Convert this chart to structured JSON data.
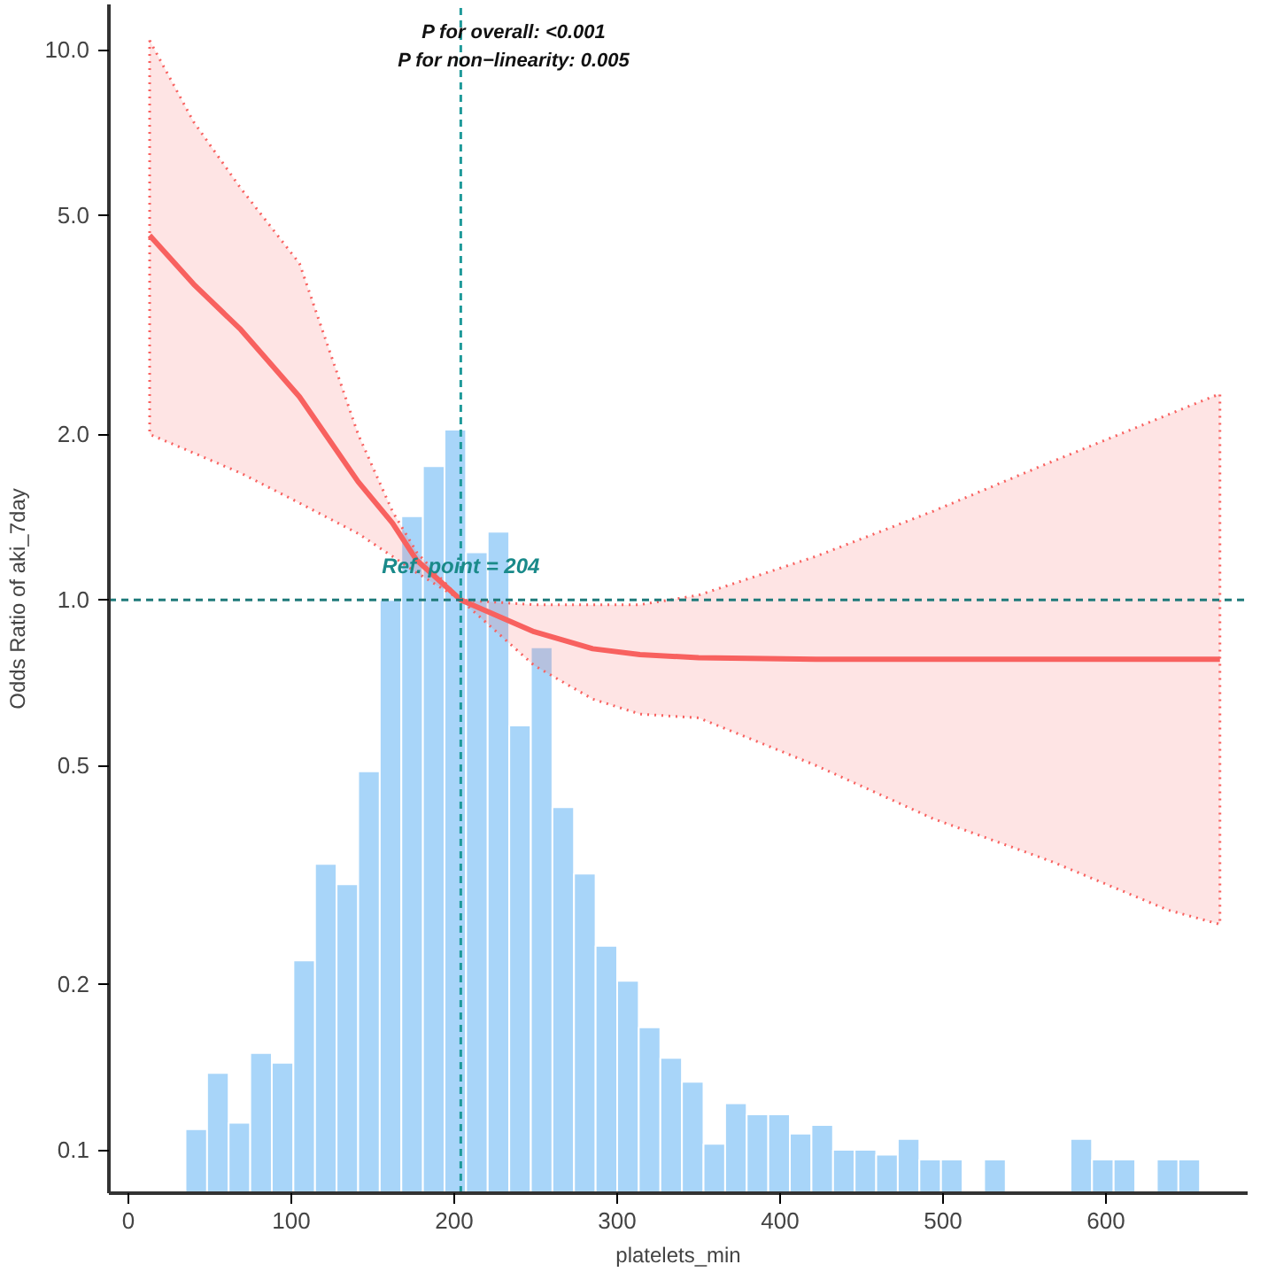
{
  "chart_data": {
    "type": "line",
    "xlabel": "platelets_min",
    "ylabel": "Odds Ratio of aki_7day",
    "log": "y",
    "grid": false,
    "xlim": [
      -12,
      687
    ],
    "ylim": [
      0.0834,
      12.1
    ],
    "xticks": [
      0,
      100,
      200,
      300,
      400,
      500,
      600
    ],
    "yticks": [
      {
        "value": 0.1,
        "label": "0.1"
      },
      {
        "value": 0.2,
        "label": "0.2"
      },
      {
        "value": 0.5,
        "label": "0.5"
      },
      {
        "value": 1,
        "label": "1.0"
      },
      {
        "value": 2,
        "label": "2.0"
      },
      {
        "value": 5,
        "label": "5.0"
      },
      {
        "value": 10,
        "label": "10.0"
      }
    ],
    "series": [
      {
        "type": "histogram",
        "color": "#a8d5f9",
        "bins": [
          35,
          48.25,
          61.5,
          74.75,
          88,
          101.25,
          114.5,
          127.75,
          141,
          154.25,
          167.5,
          180.75,
          194,
          207.25,
          220.5,
          233.75,
          247,
          260.25,
          273.5,
          286.75,
          300,
          313.25,
          326.5,
          339.75,
          353,
          366.25,
          379.5,
          392.75,
          406,
          419.25,
          432.5,
          445.75,
          459,
          472.25,
          485.5,
          498.75,
          512,
          525.25,
          538.5,
          551.75,
          565,
          578.25,
          591.5,
          604.75,
          618,
          631.25,
          644.5,
          657.75
        ],
        "values": [
          0.109,
          0.138,
          0.112,
          0.15,
          0.144,
          0.221,
          0.331,
          0.304,
          0.488,
          1.0,
          1.42,
          1.75,
          2.04,
          1.22,
          1.33,
          0.591,
          0.82,
          0.42,
          0.318,
          0.235,
          0.203,
          0.167,
          0.147,
          0.133,
          0.1026,
          0.1215,
          0.116,
          0.116,
          0.107,
          0.111,
          0.1,
          0.1,
          0.098,
          0.1047,
          0.096,
          0.096,
          null,
          0.096,
          null,
          null,
          null,
          0.1047,
          0.096,
          0.096,
          null,
          0.096,
          0.096
        ]
      },
      {
        "type": "line",
        "color": "#f8615f",
        "line_style": "solid",
        "x": [
          13,
          40,
          69,
          105,
          141,
          162,
          177,
          204,
          249,
          285,
          314,
          350,
          422,
          494,
          566,
          638,
          670
        ],
        "values": [
          4.6,
          3.75,
          3.1,
          2.34,
          1.64,
          1.38,
          1.18,
          1.0,
          0.875,
          0.815,
          0.795,
          0.785,
          0.78,
          0.78,
          0.78,
          0.78,
          0.78
        ],
        "upper": [
          10.4,
          7.4,
          5.6,
          4.09,
          2.0,
          1.45,
          1.22,
          1.0,
          0.98,
          0.98,
          0.98,
          1.02,
          1.2,
          1.45,
          1.78,
          2.17,
          2.37
        ],
        "lower": [
          2.0,
          1.85,
          1.7,
          1.5,
          1.32,
          1.2,
          1.12,
          1.0,
          0.76,
          0.66,
          0.62,
          0.61,
          0.5,
          0.4,
          0.335,
          0.273,
          0.257
        ]
      }
    ],
    "ref_lines": [
      {
        "axis": "x",
        "value": 204,
        "color": "#1f9a9a",
        "line_style": "dashed"
      },
      {
        "axis": "y",
        "value": 1,
        "color": "#1f7a7a",
        "line_style": "dashed"
      }
    ],
    "annotations": [
      "P for overall: <0.001",
      "P for non−linearity: 0.005",
      {
        "text": "Ref. point = 204",
        "x": 204,
        "y": 1
      }
    ]
  }
}
